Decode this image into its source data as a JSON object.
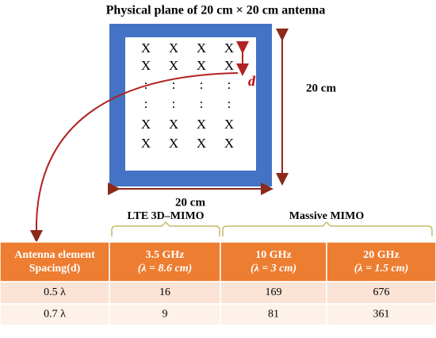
{
  "title": "Physical plane of 20 cm × 20 cm antenna",
  "antenna": {
    "grid": [
      [
        "X",
        "X",
        "X",
        "X"
      ],
      [
        "X",
        "X",
        "X",
        "X"
      ],
      [
        ":",
        ":",
        ":",
        ":"
      ],
      [
        ":",
        ":",
        ":",
        ":"
      ],
      [
        "X",
        "X",
        "X",
        "X"
      ],
      [
        "X",
        "X",
        "X",
        "X"
      ]
    ],
    "spacing_label": "d",
    "height_label": "20 cm",
    "width_label": "20 cm"
  },
  "groups": [
    "LTE 3D–MIMO",
    "Massive MIMO"
  ],
  "table": {
    "header": [
      [
        "Antenna element",
        "Spacing(d)"
      ],
      [
        "3.5 GHz",
        "(λ = 8.6 cm)"
      ],
      [
        "10 GHz",
        "(λ = 3 cm)"
      ],
      [
        "20 GHz",
        "(λ = 1.5 cm)"
      ]
    ],
    "rows": [
      [
        "0.5 λ",
        "16",
        "169",
        "676"
      ],
      [
        "0.7 λ",
        "9",
        "81",
        "361"
      ]
    ]
  }
}
